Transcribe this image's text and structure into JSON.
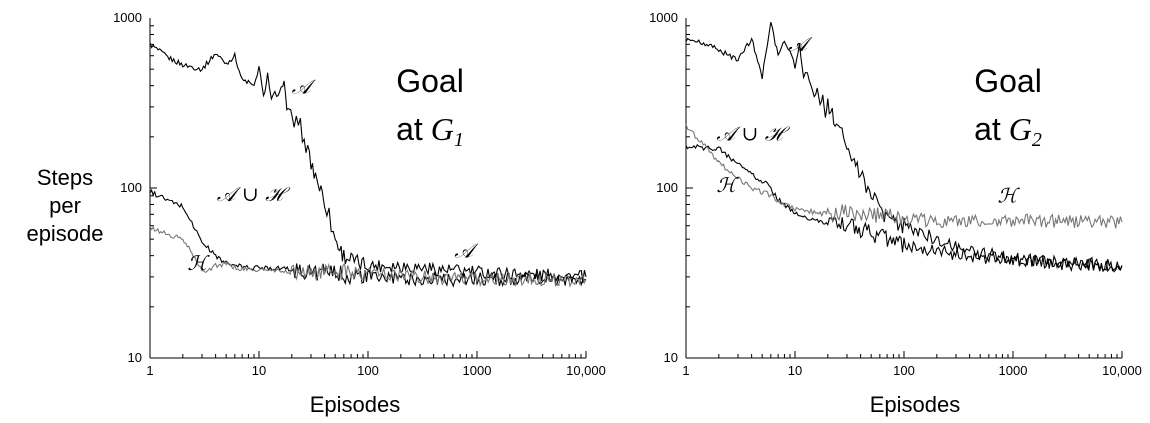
{
  "chart_data": [
    {
      "type": "line",
      "title": "Goal",
      "title_line2_prefix": "at",
      "title_symbol": "G",
      "title_subscript": "1",
      "xlabel": "Episodes",
      "ylabel_lines": [
        "Steps",
        "per",
        "episode"
      ],
      "xscale": "log",
      "yscale": "log",
      "xlim": [
        1,
        10000
      ],
      "ylim": [
        10,
        1000
      ],
      "xticks": [
        "1",
        "10",
        "100",
        "1000",
        "10,000"
      ],
      "yticks": [
        "10",
        "100",
        "1000"
      ],
      "series": [
        {
          "name": "𝒜",
          "color": "#000000",
          "points": [
            [
              1,
              700
            ],
            [
              1.5,
              580
            ],
            [
              2,
              530
            ],
            [
              3,
              500
            ],
            [
              4,
              620
            ],
            [
              5,
              540
            ],
            [
              6,
              600
            ],
            [
              7,
              430
            ],
            [
              8,
              420
            ],
            [
              9,
              390
            ],
            [
              10,
              520
            ],
            [
              11,
              340
            ],
            [
              12,
              470
            ],
            [
              13,
              330
            ],
            [
              14,
              360
            ],
            [
              15,
              340
            ],
            [
              16,
              380
            ],
            [
              17,
              440
            ],
            [
              18,
              280
            ],
            [
              19,
              300
            ],
            [
              20,
              270
            ],
            [
              21,
              240
            ],
            [
              22,
              250
            ],
            [
              23,
              210
            ],
            [
              24,
              250
            ],
            [
              25,
              200
            ],
            [
              26,
              180
            ],
            [
              27,
              160
            ],
            [
              28,
              190
            ],
            [
              29,
              150
            ],
            [
              30,
              140
            ],
            [
              32,
              125
            ],
            [
              34,
              115
            ],
            [
              36,
              100
            ],
            [
              38,
              95
            ],
            [
              40,
              85
            ],
            [
              42,
              75
            ],
            [
              44,
              70
            ],
            [
              46,
              60
            ],
            [
              48,
              55
            ],
            [
              50,
              50
            ],
            [
              55,
              44
            ],
            [
              60,
              40
            ],
            [
              70,
              38
            ],
            [
              80,
              36
            ],
            [
              100,
              35
            ],
            [
              200,
              35
            ],
            [
              500,
              33
            ],
            [
              1000,
              32
            ],
            [
              3000,
              31
            ],
            [
              10000,
              30
            ]
          ],
          "labels": [
            {
              "text": "𝒜",
              "x": 20,
              "y": 360
            },
            {
              "text": "𝒜",
              "x": 620,
              "y": 39
            }
          ]
        },
        {
          "name": "𝒜∪ℋ",
          "color": "#000000",
          "points": [
            [
              1,
              95
            ],
            [
              1.3,
              88
            ],
            [
              1.6,
              82
            ],
            [
              2,
              78
            ],
            [
              2.5,
              60
            ],
            [
              3,
              48
            ],
            [
              4,
              40
            ],
            [
              5,
              36
            ],
            [
              6,
              35
            ],
            [
              8,
              34
            ],
            [
              10,
              34
            ],
            [
              15,
              34
            ],
            [
              20,
              33
            ],
            [
              30,
              32
            ],
            [
              40,
              32
            ],
            [
              60,
              31
            ],
            [
              80,
              30
            ],
            [
              100,
              30
            ],
            [
              300,
              29
            ],
            [
              1000,
              29
            ],
            [
              10000,
              29
            ]
          ],
          "labels": [
            {
              "text": "𝒜 ∪ ℋ",
              "x": 4.1,
              "y": 84
            }
          ]
        },
        {
          "name": "ℋ",
          "color": "#777777",
          "points": [
            [
              1,
              58
            ],
            [
              1.3,
              55
            ],
            [
              1.6,
              52
            ],
            [
              2,
              50
            ],
            [
              2.5,
              40
            ],
            [
              3,
              32
            ],
            [
              4,
              35
            ],
            [
              5,
              36
            ],
            [
              6,
              34
            ],
            [
              8,
              33
            ],
            [
              10,
              33
            ],
            [
              20,
              32
            ],
            [
              50,
              32
            ],
            [
              100,
              32
            ],
            [
              300,
              30
            ],
            [
              1000,
              29
            ],
            [
              10000,
              29
            ]
          ],
          "labels": [
            {
              "text": "ℋ",
              "x": 2.2,
              "y": 33
            }
          ]
        }
      ]
    },
    {
      "type": "line",
      "title": "Goal",
      "title_line2_prefix": "at",
      "title_symbol": "G",
      "title_subscript": "2",
      "xlabel": "Episodes",
      "xscale": "log",
      "yscale": "log",
      "xlim": [
        1,
        10000
      ],
      "ylim": [
        10,
        1000
      ],
      "xticks": [
        "1",
        "10",
        "100",
        "1000",
        "10,000"
      ],
      "yticks": [
        "10",
        "100",
        "1000"
      ],
      "series": [
        {
          "name": "𝒜",
          "color": "#000000",
          "points": [
            [
              1,
              750
            ],
            [
              1.5,
              700
            ],
            [
              2,
              650
            ],
            [
              3,
              560
            ],
            [
              4,
              760
            ],
            [
              5,
              450
            ],
            [
              6,
              930
            ],
            [
              7,
              600
            ],
            [
              8,
              720
            ],
            [
              9,
              650
            ],
            [
              10,
              520
            ],
            [
              11,
              690
            ],
            [
              12,
              450
            ],
            [
              13,
              480
            ],
            [
              14,
              400
            ],
            [
              15,
              350
            ],
            [
              16,
              380
            ],
            [
              17,
              300
            ],
            [
              18,
              360
            ],
            [
              19,
              260
            ],
            [
              20,
              310
            ],
            [
              22,
              270
            ],
            [
              24,
              240
            ],
            [
              26,
              220
            ],
            [
              28,
              200
            ],
            [
              30,
              180
            ],
            [
              33,
              160
            ],
            [
              36,
              140
            ],
            [
              40,
              120
            ],
            [
              45,
              100
            ],
            [
              50,
              90
            ],
            [
              60,
              75
            ],
            [
              70,
              65
            ],
            [
              80,
              62
            ],
            [
              100,
              60
            ],
            [
              200,
              50
            ],
            [
              400,
              43
            ],
            [
              1000,
              38
            ],
            [
              3000,
              36
            ],
            [
              10000,
              35
            ]
          ],
          "labels": [
            {
              "text": "𝒜",
              "x": 8.7,
              "y": 640
            }
          ]
        },
        {
          "name": "𝒜∪ℋ",
          "color": "#000000",
          "points": [
            [
              1,
              175
            ],
            [
              1.5,
              172
            ],
            [
              2,
              170
            ],
            [
              3,
              140
            ],
            [
              4,
              120
            ],
            [
              5,
              110
            ],
            [
              6,
              100
            ],
            [
              7,
              85
            ],
            [
              8,
              80
            ],
            [
              10,
              70
            ],
            [
              15,
              66
            ],
            [
              20,
              62
            ],
            [
              30,
              60
            ],
            [
              40,
              57
            ],
            [
              60,
              52
            ],
            [
              80,
              48
            ],
            [
              100,
              46
            ],
            [
              200,
              42
            ],
            [
              400,
              40
            ],
            [
              1000,
              38
            ],
            [
              3000,
              36
            ],
            [
              10000,
              35
            ]
          ],
          "labels": [
            {
              "text": "𝒜 ∪ ℋ",
              "x": 1.9,
              "y": 190
            }
          ]
        },
        {
          "name": "ℋ",
          "color": "#777777",
          "points": [
            [
              1,
              230
            ],
            [
              1.3,
              195
            ],
            [
              1.7,
              160
            ],
            [
              2,
              140
            ],
            [
              3,
              115
            ],
            [
              4,
              100
            ],
            [
              5,
              95
            ],
            [
              6,
              90
            ],
            [
              8,
              80
            ],
            [
              10,
              75
            ],
            [
              15,
              72
            ],
            [
              20,
              70
            ],
            [
              30,
              72
            ],
            [
              50,
              70
            ],
            [
              70,
              68
            ],
            [
              100,
              66
            ],
            [
              200,
              64
            ],
            [
              500,
              65
            ],
            [
              1000,
              64
            ],
            [
              3000,
              64
            ],
            [
              10000,
              63
            ]
          ],
          "labels": [
            {
              "text": "ℋ",
              "x": 1.9,
              "y": 95
            },
            {
              "text": "ℋ",
              "x": 720,
              "y": 82
            }
          ]
        }
      ]
    }
  ]
}
